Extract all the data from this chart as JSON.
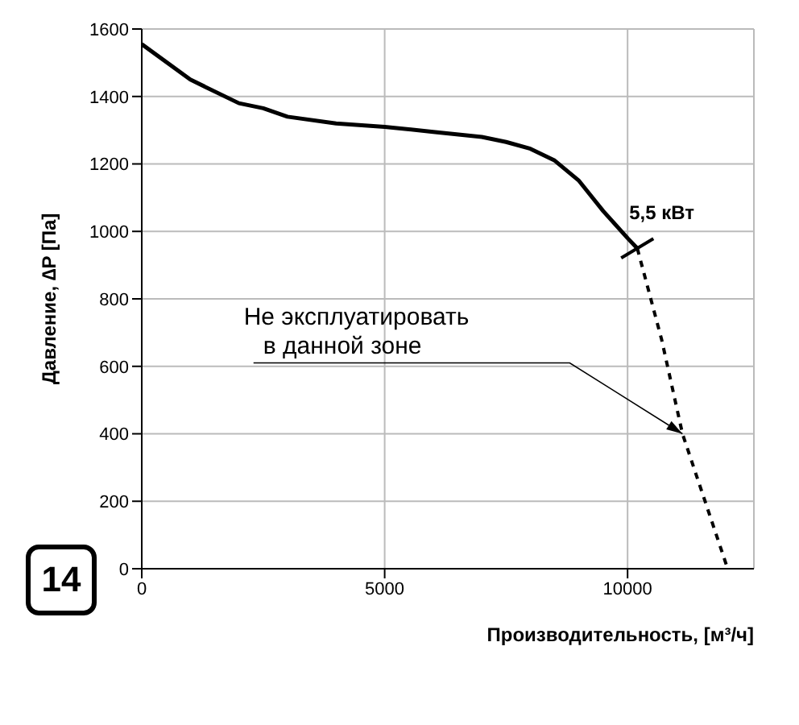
{
  "chart_data": {
    "type": "line",
    "xlabel": "Производительность, [м³/ч]",
    "ylabel": "Давление, ∆P [Па]",
    "series": [
      {
        "color": "#000000",
        "line_style": "solid",
        "x": [
          0,
          1000,
          2000,
          2500,
          3000,
          4000,
          5000,
          6000,
          7000,
          7500,
          8000,
          8500,
          9000,
          9500,
          10000,
          10200
        ],
        "values": [
          1555,
          1450,
          1380,
          1365,
          1340,
          1320,
          1310,
          1295,
          1280,
          1265,
          1245,
          1210,
          1150,
          1060,
          980,
          950
        ]
      },
      {
        "color": "#000000",
        "line_style": "dashed",
        "x": [
          10200,
          10700,
          11130,
          12060
        ],
        "values": [
          950,
          680,
          400,
          0
        ]
      }
    ],
    "xlim": [
      0,
      12600
    ],
    "xticks": [
      0,
      5000,
      10000
    ],
    "ylim": [
      0,
      1600
    ],
    "yticks": [
      0,
      200,
      400,
      600,
      800,
      1000,
      1200,
      1400,
      1600
    ],
    "grid": true,
    "marker": "none",
    "annotations": [
      {
        "text": "5,5 кВт",
        "x": 10200,
        "y": 950
      },
      {
        "text": "Не эксплуатировать в данной зоне",
        "x": 11130,
        "y": 400
      },
      "14"
    ]
  }
}
